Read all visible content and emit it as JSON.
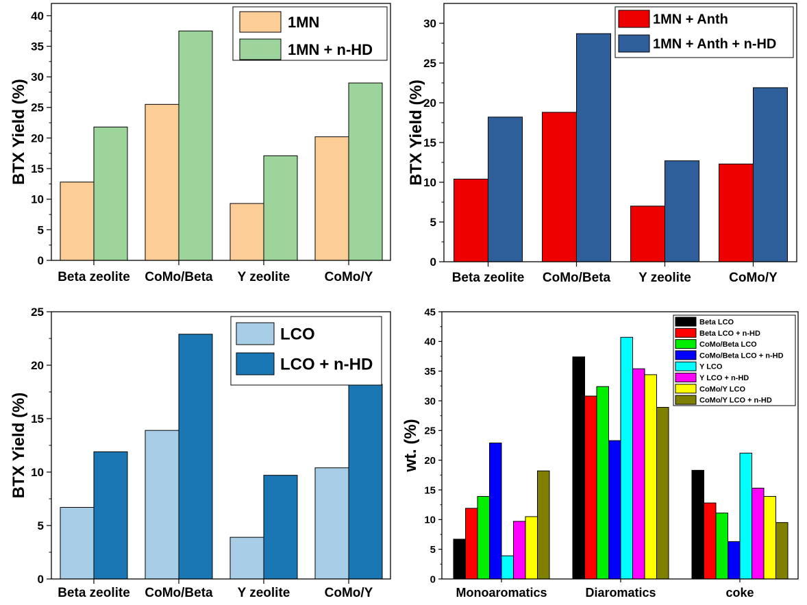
{
  "chart_data": [
    {
      "type": "bar",
      "categories": [
        "Beta zeolite",
        "CoMo/Beta",
        "Y zeolite",
        "CoMo/Y"
      ],
      "series": [
        {
          "name": "1MN",
          "values": [
            12.8,
            25.5,
            9.3,
            20.2
          ],
          "color": "#FCCD97"
        },
        {
          "name": "1MN + n-HD",
          "values": [
            21.8,
            37.5,
            17.1,
            29.0
          ],
          "color": "#9DD49C"
        }
      ],
      "title": "",
      "xlabel": "",
      "ylabel": "BTX Yield (%)",
      "ylim": [
        0,
        42
      ],
      "yticks": [
        0,
        5,
        10,
        15,
        20,
        25,
        30,
        35,
        40
      ],
      "grid": false,
      "legend": "top-right"
    },
    {
      "type": "bar",
      "categories": [
        "Beta zeolite",
        "CoMo/Beta",
        "Y zeolite",
        "CoMo/Y"
      ],
      "series": [
        {
          "name": "1MN + Anth",
          "values": [
            10.4,
            18.8,
            7.0,
            12.3
          ],
          "color": "#EE0000"
        },
        {
          "name": "1MN + Anth + n-HD",
          "values": [
            18.2,
            28.7,
            12.7,
            21.9
          ],
          "color": "#2F5F9A"
        }
      ],
      "title": "",
      "xlabel": "",
      "ylabel": "BTX Yield (%)",
      "ylim": [
        0,
        32.5
      ],
      "yticks": [
        0,
        5,
        10,
        15,
        20,
        25,
        30
      ],
      "grid": false,
      "legend": "top-right"
    },
    {
      "type": "bar",
      "categories": [
        "Beta zeolite",
        "CoMo/Beta",
        "Y zeolite",
        "CoMo/Y"
      ],
      "series": [
        {
          "name": "LCO",
          "values": [
            6.7,
            13.9,
            3.9,
            10.4
          ],
          "color": "#A8CDE6"
        },
        {
          "name": "LCO + n-HD",
          "values": [
            11.9,
            22.9,
            9.7,
            18.2
          ],
          "color": "#1B77B4"
        }
      ],
      "title": "",
      "xlabel": "",
      "ylabel": "BTX Yield (%)",
      "ylim": [
        0,
        25
      ],
      "yticks": [
        0,
        5,
        10,
        15,
        20,
        25
      ],
      "grid": false,
      "legend": "top-right"
    },
    {
      "type": "bar",
      "categories": [
        "Monoaromatics",
        "Diaromatics",
        "coke"
      ],
      "series": [
        {
          "name": "Beta LCO",
          "values": [
            6.7,
            37.4,
            18.3
          ],
          "color": "#000000"
        },
        {
          "name": "Beta LCO + n-HD",
          "values": [
            11.9,
            30.8,
            12.8
          ],
          "color": "#FF0000"
        },
        {
          "name": "CoMo/Beta LCO",
          "values": [
            13.9,
            32.4,
            11.1
          ],
          "color": "#00EE00"
        },
        {
          "name": "CoMo/Beta LCO + n-HD",
          "values": [
            22.9,
            23.3,
            6.3
          ],
          "color": "#0000FF"
        },
        {
          "name": "Y LCO",
          "values": [
            3.9,
            40.7,
            21.2
          ],
          "color": "#00FFFF"
        },
        {
          "name": "Y LCO + n-HD",
          "values": [
            9.7,
            35.4,
            15.3
          ],
          "color": "#FF00FF"
        },
        {
          "name": "CoMo/Y LCO",
          "values": [
            10.5,
            34.4,
            13.9
          ],
          "color": "#FFFF00"
        },
        {
          "name": "CoMo/Y LCO + n-HD",
          "values": [
            18.2,
            28.9,
            9.5
          ],
          "color": "#808000"
        }
      ],
      "title": "",
      "xlabel": "",
      "ylabel": "wt.  (%)",
      "ylim": [
        0,
        45
      ],
      "yticks": [
        0,
        5,
        10,
        15,
        20,
        25,
        30,
        35,
        40,
        45
      ],
      "grid": false,
      "legend": "top-right"
    }
  ]
}
